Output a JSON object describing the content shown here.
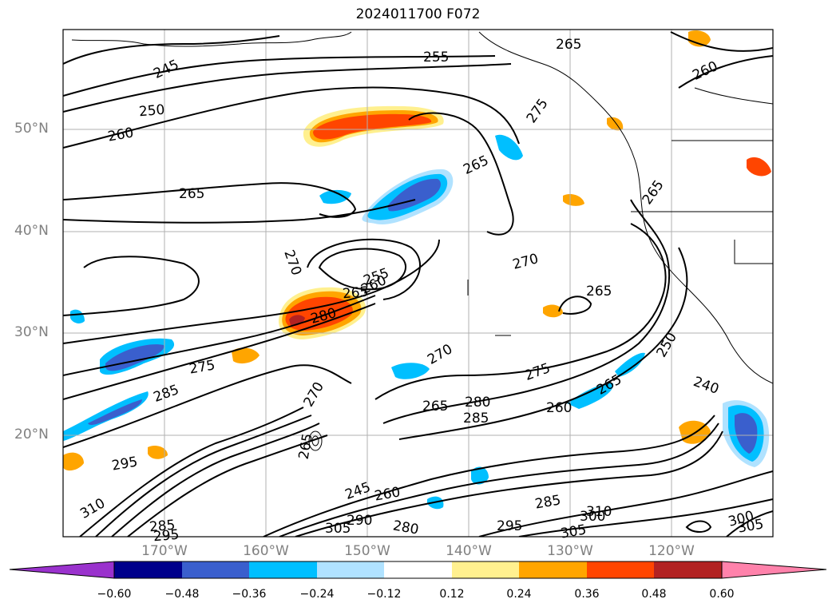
{
  "title": "2024011700 F072",
  "lat_labels": [
    "50°N",
    "40°N",
    "30°N",
    "20°N"
  ],
  "lon_labels": [
    "170°W",
    "160°W",
    "150°W",
    "140°W",
    "130°W",
    "120°W"
  ],
  "colorbar": {
    "ticks": [
      "−0.60",
      "−0.48",
      "−0.36",
      "−0.24",
      "−0.12",
      "0.12",
      "0.24",
      "0.36",
      "0.48",
      "0.60"
    ],
    "colors": [
      "#9a32cd",
      "#00008b",
      "#3a5fcd",
      "#00bfff",
      "#b0e2ff",
      "#ffffff",
      "#fff08f",
      "#ffa500",
      "#ff4500",
      "#b22222",
      "#ff82ab"
    ]
  },
  "contour_labels": [
    {
      "text": "245"
    },
    {
      "text": "255"
    },
    {
      "text": "265"
    },
    {
      "text": "260"
    },
    {
      "text": "250"
    },
    {
      "text": "260"
    },
    {
      "text": "275"
    },
    {
      "text": "265"
    },
    {
      "text": "265"
    },
    {
      "text": "265"
    },
    {
      "text": "270"
    },
    {
      "text": "255"
    },
    {
      "text": "260"
    },
    {
      "text": "265"
    },
    {
      "text": "270"
    },
    {
      "text": "280"
    },
    {
      "text": "265"
    },
    {
      "text": "275"
    },
    {
      "text": "270"
    },
    {
      "text": "275"
    },
    {
      "text": "265"
    },
    {
      "text": "285"
    },
    {
      "text": "280"
    },
    {
      "text": "285"
    },
    {
      "text": "260"
    },
    {
      "text": "265"
    },
    {
      "text": "250"
    },
    {
      "text": "240"
    },
    {
      "text": "245"
    },
    {
      "text": "260"
    },
    {
      "text": "280"
    },
    {
      "text": "285"
    },
    {
      "text": "295"
    },
    {
      "text": "300"
    },
    {
      "text": "305"
    },
    {
      "text": "310"
    },
    {
      "text": "300"
    },
    {
      "text": "305"
    },
    {
      "text": "270"
    },
    {
      "text": "265"
    },
    {
      "text": "285"
    },
    {
      "text": "295"
    },
    {
      "text": "310"
    },
    {
      "text": "295"
    },
    {
      "text": "305"
    },
    {
      "text": "290"
    }
  ]
}
